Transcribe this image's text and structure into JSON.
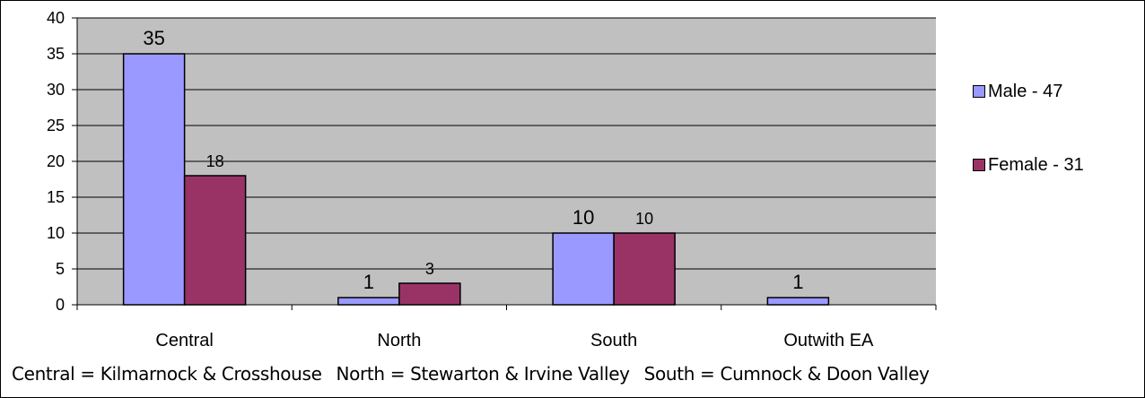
{
  "chart_data": {
    "type": "bar",
    "categories": [
      "Central",
      "North",
      "South",
      "Outwith EA"
    ],
    "series": [
      {
        "name": "Male - 47",
        "values": [
          35,
          1,
          10,
          1
        ],
        "color": "#9999ff"
      },
      {
        "name": "Female - 31",
        "values": [
          18,
          3,
          10,
          null
        ],
        "color": "#993366"
      }
    ],
    "data_labels": [
      [
        "35",
        "1",
        "10",
        "1"
      ],
      [
        "18",
        "3",
        "10",
        ""
      ]
    ],
    "ylim": [
      0,
      40
    ],
    "yticks": [
      0,
      5,
      10,
      15,
      20,
      25,
      30,
      35,
      40
    ],
    "grid": true,
    "plot_background": "#c0c0c0",
    "legend_position": "right",
    "title": "",
    "xlabel": "",
    "ylabel": ""
  },
  "footnote": {
    "central": "Central  = Kilmarnock & Crosshouse",
    "north": "North = Stewarton & Irvine Valley",
    "south": "South = Cumnock & Doon Valley"
  }
}
